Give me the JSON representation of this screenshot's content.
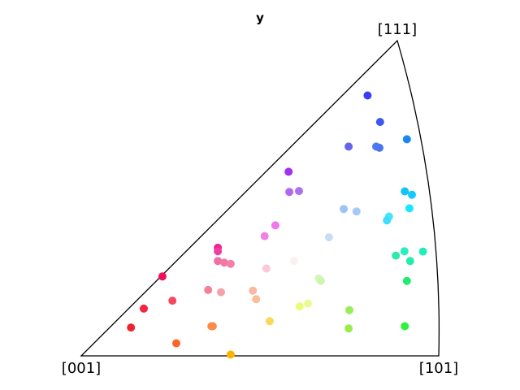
{
  "chart_data": {
    "type": "scatter",
    "title": "y",
    "xlabel": "",
    "ylabel": "",
    "grid": false,
    "corners": [
      "[001]",
      "[101]",
      "[111]"
    ],
    "points_unit": "fraction of triangle base (horizontal, from [001]) and height (vertical, from base)",
    "points": [
      {
        "x": 0.801,
        "y": 0.826,
        "color": "#3c3cf6"
      },
      {
        "x": 0.836,
        "y": 0.742,
        "color": "#3d57f0"
      },
      {
        "x": 0.911,
        "y": 0.687,
        "color": "#1a86f2"
      },
      {
        "x": 0.748,
        "y": 0.664,
        "color": "#6464ea"
      },
      {
        "x": 0.825,
        "y": 0.664,
        "color": "#4a7cf0"
      },
      {
        "x": 0.834,
        "y": 0.66,
        "color": "#4d74f0"
      },
      {
        "x": 0.58,
        "y": 0.584,
        "color": "#a231f0"
      },
      {
        "x": 0.582,
        "y": 0.52,
        "color": "#b066ee"
      },
      {
        "x": 0.609,
        "y": 0.523,
        "color": "#ad6ef0"
      },
      {
        "x": 0.905,
        "y": 0.522,
        "color": "#10c4f8"
      },
      {
        "x": 0.925,
        "y": 0.511,
        "color": "#15c8ff"
      },
      {
        "x": 0.918,
        "y": 0.468,
        "color": "#1ce6ff"
      },
      {
        "x": 0.734,
        "y": 0.466,
        "color": "#9dc2fa"
      },
      {
        "x": 0.77,
        "y": 0.458,
        "color": "#a6c9f8"
      },
      {
        "x": 0.861,
        "y": 0.442,
        "color": "#40e8f8"
      },
      {
        "x": 0.855,
        "y": 0.43,
        "color": "#40dcff"
      },
      {
        "x": 0.543,
        "y": 0.414,
        "color": "#ef78ef"
      },
      {
        "x": 0.513,
        "y": 0.38,
        "color": "#ee80e8"
      },
      {
        "x": 0.693,
        "y": 0.376,
        "color": "#c8dcf6"
      },
      {
        "x": 0.956,
        "y": 0.331,
        "color": "#20eeb8"
      },
      {
        "x": 0.904,
        "y": 0.332,
        "color": "#28eec0"
      },
      {
        "x": 0.88,
        "y": 0.318,
        "color": "#30eaa8"
      },
      {
        "x": 0.92,
        "y": 0.301,
        "color": "#23eea8"
      },
      {
        "x": 0.382,
        "y": 0.343,
        "color": "#f0228e"
      },
      {
        "x": 0.382,
        "y": 0.332,
        "color": "#f03ca3"
      },
      {
        "x": 0.382,
        "y": 0.301,
        "color": "#f070a6"
      },
      {
        "x": 0.4,
        "y": 0.296,
        "color": "#f07aa6"
      },
      {
        "x": 0.418,
        "y": 0.292,
        "color": "#f47ea6"
      },
      {
        "x": 0.518,
        "y": 0.277,
        "color": "#fac8d6"
      },
      {
        "x": 0.595,
        "y": 0.301,
        "color": "#fcf0f0"
      },
      {
        "x": 0.227,
        "y": 0.252,
        "color": "#f0115b"
      },
      {
        "x": 0.664,
        "y": 0.246,
        "color": "#d6f8b8"
      },
      {
        "x": 0.67,
        "y": 0.238,
        "color": "#ccf6b0"
      },
      {
        "x": 0.911,
        "y": 0.238,
        "color": "#1fec6c"
      },
      {
        "x": 0.355,
        "y": 0.209,
        "color": "#f48094"
      },
      {
        "x": 0.391,
        "y": 0.202,
        "color": "#f6a0a8"
      },
      {
        "x": 0.48,
        "y": 0.207,
        "color": "#f8b8a4"
      },
      {
        "x": 0.489,
        "y": 0.18,
        "color": "#fcbc98"
      },
      {
        "x": 0.255,
        "y": 0.175,
        "color": "#f64860"
      },
      {
        "x": 0.634,
        "y": 0.166,
        "color": "#ecfa92"
      },
      {
        "x": 0.611,
        "y": 0.157,
        "color": "#e7ff74"
      },
      {
        "x": 0.175,
        "y": 0.15,
        "color": "#f42542"
      },
      {
        "x": 0.75,
        "y": 0.145,
        "color": "#98ee5a"
      },
      {
        "x": 0.527,
        "y": 0.11,
        "color": "#fbd75a"
      },
      {
        "x": 0.364,
        "y": 0.094,
        "color": "#fe8b44"
      },
      {
        "x": 0.368,
        "y": 0.094,
        "color": "#ff8a4a"
      },
      {
        "x": 0.139,
        "y": 0.09,
        "color": "#ec2430"
      },
      {
        "x": 0.905,
        "y": 0.094,
        "color": "#2ef23c"
      },
      {
        "x": 0.748,
        "y": 0.087,
        "color": "#98ee48"
      },
      {
        "x": 0.266,
        "y": 0.04,
        "color": "#fe6426"
      },
      {
        "x": 0.418,
        "y": 0.004,
        "color": "#fdb200"
      }
    ]
  }
}
